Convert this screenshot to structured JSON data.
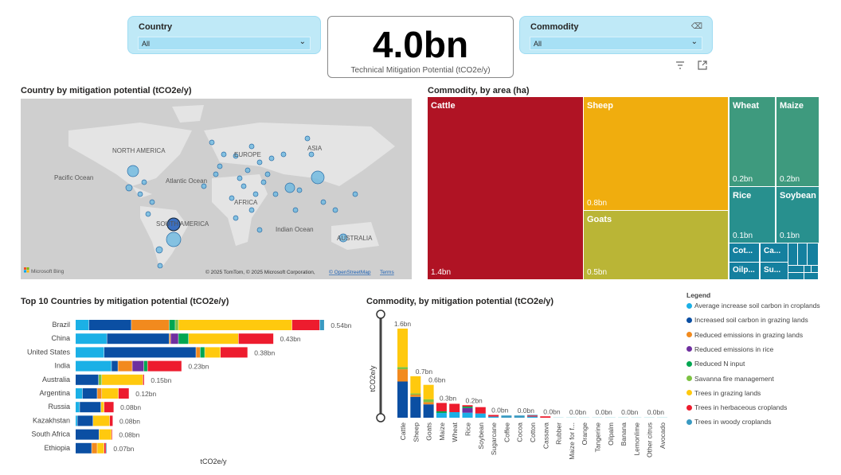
{
  "filters": {
    "country": {
      "label": "Country",
      "value": "All"
    },
    "commodity": {
      "label": "Commodity",
      "value": "All"
    }
  },
  "kpi": {
    "value": "4.0bn",
    "caption": "Technical Mitigation Potential (tCO2e/y)"
  },
  "icons": {
    "eraser": "eraser-icon",
    "filter": "filter-icon",
    "expand": "focus-mode-icon"
  },
  "map": {
    "title": "Country by mitigation potential (tCO2e/y)",
    "labels": [
      "NORTH AMERICA",
      "EUROPE",
      "ASIA",
      "Pacific Ocean",
      "Atlantic Ocean",
      "AFRICA",
      "SOUTH AMERICA",
      "Indian Ocean",
      "AUSTRALIA"
    ],
    "brand": "Microsoft Bing",
    "attribution": "© 2025 TomTom, © 2025 Microsoft Corporation,",
    "osm_link": "© OpenStreetMap",
    "terms_link": "Terms"
  },
  "colors": {
    "soil_crop": "#1bb0e6",
    "soil_graze": "#0b4fa3",
    "emis_graze": "#f28a1e",
    "emis_rice": "#6f2f9f",
    "n_input": "#00a651",
    "savanna": "#7dc242",
    "trees_graze": "#ffc90e",
    "trees_herb": "#ed1c2e",
    "trees_woody": "#3a9ac2"
  },
  "treemap": {
    "title": "Commodity, by area (ha)",
    "items": [
      {
        "name": "Cattle",
        "value": "1.4bn",
        "color": "#b01324"
      },
      {
        "name": "Sheep",
        "value": "0.8bn",
        "color": "#f0ad0e"
      },
      {
        "name": "Goats",
        "value": "0.5bn",
        "color": "#bab536"
      },
      {
        "name": "Wheat",
        "value": "0.2bn",
        "color": "#3e9a7e"
      },
      {
        "name": "Maize",
        "value": "0.2bn",
        "color": "#3e9a7e"
      },
      {
        "name": "Rice",
        "value": "0.1bn",
        "color": "#28908e"
      },
      {
        "name": "Soybean",
        "value": "0.1bn",
        "color": "#28908e"
      },
      {
        "name": "Cot...",
        "color": "#14809f"
      },
      {
        "name": "Ca...",
        "color": "#14809f"
      },
      {
        "name": "Oilp...",
        "color": "#14809f"
      },
      {
        "name": "Su...",
        "color": "#14809f"
      }
    ]
  },
  "chart_data": [
    {
      "type": "bar",
      "orientation": "horizontal-stacked",
      "title": "Top 10 Countries by mitigation potential (tCO2e/y)",
      "xlabel": "tCO2e/y",
      "categories": [
        "Brazil",
        "China",
        "United States",
        "India",
        "Australia",
        "Argentina",
        "Russia",
        "Kazakhstan",
        "South Africa",
        "Ethiopia"
      ],
      "totals_labels": [
        "0.54bn",
        "0.43bn",
        "0.38bn",
        "0.23bn",
        "0.15bn",
        "0.12bn",
        "0.08bn",
        "0.08bn",
        "0.08bn",
        "0.07bn"
      ],
      "series_keys": [
        "soil_crop",
        "soil_graze",
        "emis_graze",
        "emis_rice",
        "n_input",
        "savanna",
        "trees_graze",
        "trees_herb",
        "trees_woody"
      ],
      "values_bn": [
        [
          0.029,
          0.092,
          0.082,
          0,
          0.013,
          0.007,
          0.246,
          0.06,
          0.01
        ],
        [
          0.068,
          0.135,
          0.003,
          0.017,
          0.022,
          0,
          0.108,
          0.076,
          0
        ],
        [
          0.062,
          0.199,
          0.009,
          0,
          0.01,
          0,
          0.034,
          0.059,
          0
        ],
        [
          0.078,
          0.014,
          0.031,
          0.025,
          0.008,
          0,
          0,
          0.074,
          0
        ],
        [
          0,
          0.05,
          0,
          0,
          0,
          0.007,
          0.089,
          0.003,
          0
        ],
        [
          0.015,
          0.032,
          0.01,
          0,
          0,
          0,
          0.036,
          0.023,
          0
        ],
        [
          0.009,
          0.046,
          0,
          0,
          0,
          0,
          0.007,
          0.021,
          0
        ],
        [
          0.004,
          0.034,
          0,
          0,
          0,
          0,
          0.036,
          0.007,
          0
        ],
        [
          0,
          0.051,
          0,
          0,
          0,
          0,
          0.027,
          0.002,
          0
        ],
        [
          0,
          0.035,
          0.012,
          0,
          0,
          0,
          0.015,
          0.004,
          0.002
        ]
      ],
      "xlim": [
        0,
        0.55
      ]
    },
    {
      "type": "bar",
      "orientation": "vertical-stacked",
      "title": "Commodity, by mitigation potential (tCO2e/y)",
      "ylabel": "tCO2e/y",
      "categories": [
        "Cattle",
        "Sheep",
        "Goats",
        "Maize",
        "Wheat",
        "Rice",
        "Soybean",
        "Sugarcane",
        "Coffee",
        "Cocoa",
        "Cotton",
        "Cassava",
        "Rubber",
        "Maize for f...",
        "Orange",
        "Tangerine",
        "Oilpalm",
        "Banana",
        "Lemonlime",
        "Other citrus",
        "Avocado"
      ],
      "data_labels": [
        "1.6bn",
        "0.7bn",
        "0.6bn",
        "0.3bn",
        "",
        "0.2bn",
        "",
        "0.0bn",
        "",
        "0.0bn",
        "",
        "0.0bn",
        "",
        "0.0bn",
        "",
        "0.0bn",
        "",
        "0.0bn",
        "",
        "0.0bn",
        ""
      ],
      "series_keys": [
        "soil_crop",
        "soil_graze",
        "emis_graze",
        "emis_rice",
        "n_input",
        "savanna",
        "trees_graze",
        "trees_herb",
        "trees_woody"
      ],
      "values_bn": [
        [
          0,
          0.65,
          0.22,
          0,
          0,
          0.04,
          0.69,
          0,
          0
        ],
        [
          0,
          0.375,
          0.04,
          0,
          0,
          0.02,
          0.31,
          0,
          0
        ],
        [
          0,
          0.24,
          0.04,
          0,
          0,
          0.05,
          0.26,
          0,
          0
        ],
        [
          0.085,
          0,
          0,
          0,
          0.03,
          0,
          0,
          0.15,
          0
        ],
        [
          0.1,
          0,
          0,
          0,
          0,
          0,
          0,
          0.15,
          0
        ],
        [
          0.09,
          0,
          0,
          0.085,
          0.025,
          0,
          0,
          0.025,
          0
        ],
        [
          0.076,
          0,
          0,
          0,
          0,
          0,
          0,
          0.114,
          0
        ],
        [
          0.02,
          0,
          0,
          0,
          0,
          0,
          0,
          0.03,
          0
        ],
        [
          0,
          0,
          0,
          0,
          0,
          0,
          0,
          0,
          0.04
        ],
        [
          0,
          0,
          0,
          0,
          0,
          0,
          0,
          0,
          0.04
        ],
        [
          0.02,
          0,
          0,
          0,
          0,
          0,
          0,
          0.02,
          0.01
        ],
        [
          0,
          0,
          0,
          0,
          0,
          0,
          0,
          0.025,
          0
        ],
        [
          0,
          0,
          0,
          0,
          0,
          0,
          0,
          0,
          0.008
        ],
        [
          0,
          0,
          0,
          0,
          0,
          0,
          0,
          0,
          0.006
        ],
        [
          0,
          0,
          0,
          0,
          0,
          0,
          0,
          0,
          0.005
        ],
        [
          0,
          0,
          0,
          0,
          0,
          0,
          0,
          0,
          0.005
        ],
        [
          0,
          0,
          0,
          0,
          0,
          0,
          0,
          0,
          0.005
        ],
        [
          0,
          0,
          0,
          0,
          0,
          0,
          0,
          0,
          0.005
        ],
        [
          0,
          0,
          0,
          0,
          0,
          0,
          0,
          0,
          0.004
        ],
        [
          0,
          0,
          0,
          0,
          0,
          0,
          0,
          0,
          0.004
        ],
        [
          0,
          0,
          0,
          0,
          0,
          0,
          0,
          0,
          0.003
        ]
      ],
      "ylim": [
        0,
        1.6
      ]
    }
  ],
  "legend": {
    "title": "Legend",
    "items": [
      {
        "key": "soil_crop",
        "label": "Average increase soil carbon in croplands"
      },
      {
        "key": "soil_graze",
        "label": "Increased soil carbon in grazing lands"
      },
      {
        "key": "emis_graze",
        "label": "Reduced emissions in grazing lands"
      },
      {
        "key": "emis_rice",
        "label": "Reduced emissions in rice"
      },
      {
        "key": "n_input",
        "label": "Reduced N input"
      },
      {
        "key": "savanna",
        "label": "Savanna fire management"
      },
      {
        "key": "trees_graze",
        "label": "Trees in grazing lands"
      },
      {
        "key": "trees_herb",
        "label": "Trees in herbaceous croplands"
      },
      {
        "key": "trees_woody",
        "label": "Trees in woody croplands"
      }
    ]
  }
}
